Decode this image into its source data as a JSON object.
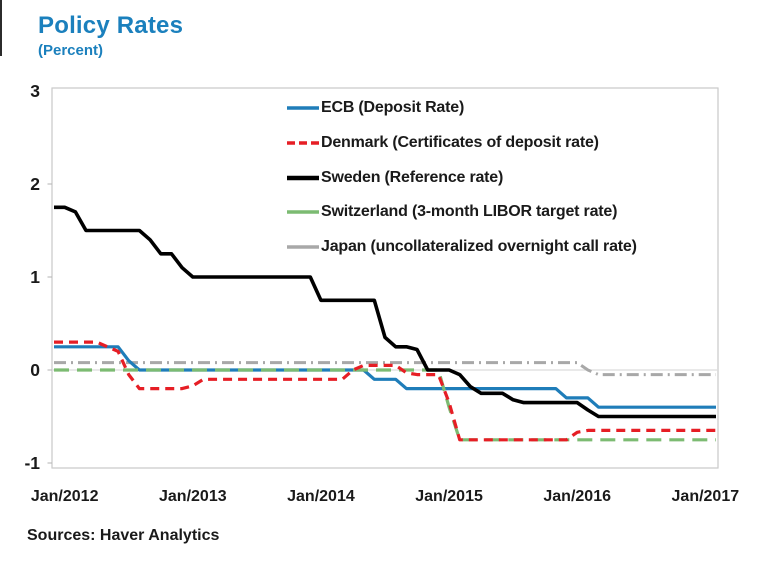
{
  "chart_data": {
    "type": "line",
    "title": "Policy Rates",
    "subtitle": "(Percent)",
    "x_unit": "month",
    "x_range": [
      "Dec/2011",
      "Feb/2017"
    ],
    "x_tick_labels": [
      "Jan/2012",
      "Jan/2013",
      "Jan/2014",
      "Jan/2015",
      "Jan/2016",
      "Jan/2017"
    ],
    "x_tick_indices": [
      1,
      13,
      25,
      37,
      49,
      61
    ],
    "y_ticks": [
      3,
      2,
      1,
      0,
      -1
    ],
    "ylim": [
      -1.05,
      3.03
    ],
    "grid": "zero-line-only",
    "legend_position": "top-right-inside",
    "series": [
      {
        "name": "ecb",
        "label": "ECB (Deposit Rate)",
        "color": "#1f7db9",
        "style": "solid",
        "width": 3.2,
        "values": [
          0.25,
          0.25,
          0.25,
          0.25,
          0.25,
          0.25,
          0.25,
          0.1,
          0,
          0,
          0,
          0,
          0,
          0,
          0,
          0,
          0,
          0,
          0,
          0,
          0,
          0,
          0,
          0,
          0,
          0,
          0,
          0,
          0,
          0,
          -0.1,
          -0.1,
          -0.1,
          -0.2,
          -0.2,
          -0.2,
          -0.2,
          -0.2,
          -0.2,
          -0.2,
          -0.2,
          -0.2,
          -0.2,
          -0.2,
          -0.2,
          -0.2,
          -0.2,
          -0.2,
          -0.3,
          -0.3,
          -0.3,
          -0.4,
          -0.4,
          -0.4,
          -0.4,
          -0.4,
          -0.4,
          -0.4,
          -0.4,
          -0.4,
          -0.4,
          -0.4,
          -0.4
        ]
      },
      {
        "name": "denmark",
        "label": "Denmark (Certificates of deposit rate)",
        "color": "#e61e25",
        "style": "dashed",
        "width": 3.2,
        "values": [
          0.3,
          0.3,
          0.3,
          0.3,
          0.3,
          0.25,
          0.2,
          -0.05,
          -0.2,
          -0.2,
          -0.2,
          -0.2,
          -0.2,
          -0.17,
          -0.1,
          -0.1,
          -0.1,
          -0.1,
          -0.1,
          -0.1,
          -0.1,
          -0.1,
          -0.1,
          -0.1,
          -0.1,
          -0.1,
          -0.1,
          -0.1,
          0,
          0.05,
          0.05,
          0.05,
          0.05,
          -0.03,
          -0.05,
          -0.05,
          -0.05,
          -0.35,
          -0.75,
          -0.75,
          -0.75,
          -0.75,
          -0.75,
          -0.75,
          -0.75,
          -0.75,
          -0.75,
          -0.75,
          -0.75,
          -0.67,
          -0.65,
          -0.65,
          -0.65,
          -0.65,
          -0.65,
          -0.65,
          -0.65,
          -0.65,
          -0.65,
          -0.65,
          -0.65,
          -0.65,
          -0.65
        ]
      },
      {
        "name": "sweden",
        "label": "Sweden (Reference rate)",
        "color": "#000000",
        "style": "solid",
        "width": 3.6,
        "values": [
          1.75,
          1.75,
          1.7,
          1.5,
          1.5,
          1.5,
          1.5,
          1.5,
          1.5,
          1.4,
          1.25,
          1.25,
          1.1,
          1,
          1,
          1,
          1,
          1,
          1,
          1,
          1,
          1,
          1,
          1,
          1,
          0.75,
          0.75,
          0.75,
          0.75,
          0.75,
          0.75,
          0.35,
          0.25,
          0.25,
          0.22,
          0,
          0,
          0,
          -0.05,
          -0.18,
          -0.25,
          -0.25,
          -0.25,
          -0.32,
          -0.35,
          -0.35,
          -0.35,
          -0.35,
          -0.35,
          -0.35,
          -0.43,
          -0.5,
          -0.5,
          -0.5,
          -0.5,
          -0.5,
          -0.5,
          -0.5,
          -0.5,
          -0.5,
          -0.5,
          -0.5,
          -0.5
        ]
      },
      {
        "name": "switzerland",
        "label": "Switzerland (3-month LIBOR target rate)",
        "color": "#7cbb72",
        "style": "long-dash",
        "width": 3.2,
        "values": [
          0,
          0,
          0,
          0,
          0,
          0,
          0,
          0,
          0,
          0,
          0,
          0,
          0,
          0,
          0,
          0,
          0,
          0,
          0,
          0,
          0,
          0,
          0,
          0,
          0,
          0,
          0,
          0,
          0,
          0,
          0,
          0,
          0,
          0,
          0,
          0,
          0,
          -0.4,
          -0.75,
          -0.75,
          -0.75,
          -0.75,
          -0.75,
          -0.75,
          -0.75,
          -0.75,
          -0.75,
          -0.75,
          -0.75,
          -0.75,
          -0.75,
          -0.75,
          -0.75,
          -0.75,
          -0.75,
          -0.75,
          -0.75,
          -0.75,
          -0.75,
          -0.75,
          -0.75,
          -0.75,
          -0.75
        ]
      },
      {
        "name": "japan",
        "label": "Japan (uncollateralized overnight call rate)",
        "color": "#a8a8a8",
        "style": "dash-dot",
        "width": 3,
        "values": [
          0.08,
          0.08,
          0.08,
          0.08,
          0.08,
          0.08,
          0.08,
          0.08,
          0.08,
          0.08,
          0.08,
          0.08,
          0.08,
          0.08,
          0.08,
          0.08,
          0.08,
          0.08,
          0.08,
          0.08,
          0.08,
          0.08,
          0.08,
          0.08,
          0.08,
          0.08,
          0.08,
          0.08,
          0.08,
          0.08,
          0.08,
          0.08,
          0.08,
          0.08,
          0.08,
          0.08,
          0.08,
          0.08,
          0.08,
          0.08,
          0.08,
          0.08,
          0.08,
          0.08,
          0.08,
          0.08,
          0.08,
          0.08,
          0.08,
          0.08,
          0,
          -0.05,
          -0.05,
          -0.05,
          -0.05,
          -0.05,
          -0.05,
          -0.05,
          -0.05,
          -0.05,
          -0.05,
          -0.05,
          -0.05
        ]
      }
    ]
  },
  "source_note": "Sources: Haver Analytics",
  "colors": {
    "title_text": "#1b80bd",
    "axis_text": "#1a1a1a",
    "plot_border": "#c9c9c9",
    "zero_line": "#dcdcdc",
    "ecb_blue": "#1f7db9",
    "denmark_red": "#e61e25",
    "sweden_black": "#000000",
    "switzerland_green": "#7cbb72",
    "japan_gray": "#a8a8a8"
  }
}
